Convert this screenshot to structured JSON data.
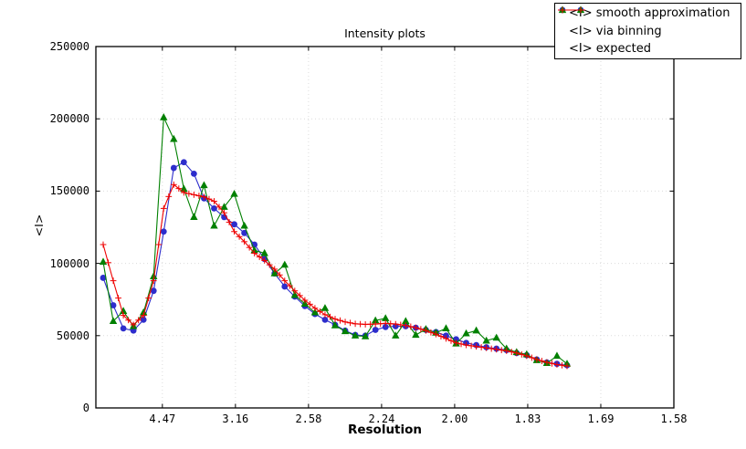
{
  "chart_data": {
    "type": "line",
    "title": "Intensity plots",
    "xlabel": "Resolution",
    "ylabel": "<I>",
    "grid": "dotted",
    "legend_position": "top-right",
    "x_axis": {
      "unit": "1/d^2 (reciprocal resolution squared)",
      "range": [
        0.0045,
        0.4
      ],
      "tick_positions": [
        0.05,
        0.1,
        0.15,
        0.2,
        0.25,
        0.3,
        0.35,
        0.4
      ],
      "tick_labels": [
        "4.47",
        "3.16",
        "2.58",
        "2.24",
        "2.00",
        "1.83",
        "1.69",
        "1.58"
      ]
    },
    "y_axis": {
      "range": [
        0,
        250000
      ],
      "tick_positions": [
        0,
        50000,
        100000,
        150000,
        200000,
        250000
      ],
      "tick_labels": [
        "0",
        "50000",
        "100000",
        "150000",
        "200000",
        "250000"
      ]
    },
    "x": [
      0.0095,
      0.0164,
      0.0233,
      0.0302,
      0.0371,
      0.044,
      0.0509,
      0.0578,
      0.0647,
      0.0716,
      0.0785,
      0.0854,
      0.0923,
      0.0992,
      0.1061,
      0.113,
      0.1199,
      0.1268,
      0.1337,
      0.1406,
      0.1475,
      0.1544,
      0.1613,
      0.1682,
      0.1751,
      0.182,
      0.1889,
      0.1958,
      0.2027,
      0.2096,
      0.2165,
      0.2234,
      0.2303,
      0.2372,
      0.2441,
      0.251,
      0.2579,
      0.2648,
      0.2717,
      0.2786,
      0.2855,
      0.2924,
      0.2993,
      0.3062,
      0.3131,
      0.32,
      0.3269
    ],
    "series": [
      {
        "name": "<I> smooth approximation",
        "color": "#2d2dcc",
        "marker": "circle",
        "values": [
          90000,
          71000,
          55000,
          53500,
          61000,
          81000,
          122000,
          166000,
          170000,
          162000,
          145000,
          138000,
          132000,
          127000,
          121000,
          113000,
          103000,
          93000,
          84000,
          77000,
          70500,
          65000,
          61000,
          57500,
          53500,
          50500,
          50000,
          54000,
          56000,
          56500,
          56500,
          55500,
          54000,
          52500,
          50000,
          47500,
          45000,
          43500,
          42000,
          41000,
          40000,
          38000,
          36500,
          33500,
          31500,
          30500,
          29500
        ]
      },
      {
        "name": "<I> via binning",
        "color": "#008000",
        "marker": "triangle-up",
        "values": [
          101000,
          60000,
          67000,
          56500,
          66000,
          91000,
          201000,
          186000,
          151500,
          132000,
          154000,
          126000,
          139000,
          148000,
          126000,
          109000,
          107000,
          93000,
          99000,
          78000,
          72000,
          66000,
          69000,
          57000,
          53000,
          50000,
          49500,
          60500,
          62000,
          50000,
          60000,
          50500,
          54500,
          52000,
          55000,
          44500,
          51500,
          53500,
          46500,
          48500,
          41000,
          38500,
          37000,
          33000,
          31000,
          36000,
          30500
        ]
      },
      {
        "name": "<I> expected",
        "color": "#ee0000",
        "marker": "plus",
        "values": [
          113000,
          88000,
          64000,
          57500,
          64000,
          88000,
          138000,
          154500,
          149000,
          147500,
          146000,
          143000,
          135000,
          122000,
          115000,
          107000,
          102000,
          96000,
          88000,
          81000,
          74500,
          69000,
          64500,
          61500,
          59500,
          58200,
          57800,
          58000,
          58500,
          58000,
          57000,
          55500,
          53500,
          51000,
          48000,
          45000,
          43500,
          42500,
          41500,
          40500,
          39500,
          38000,
          36000,
          33500,
          31500,
          30000,
          29000
        ]
      }
    ],
    "style": {
      "grid_color": "#dcdcdc",
      "frame_color": "#000000",
      "background": "#ffffff"
    }
  }
}
